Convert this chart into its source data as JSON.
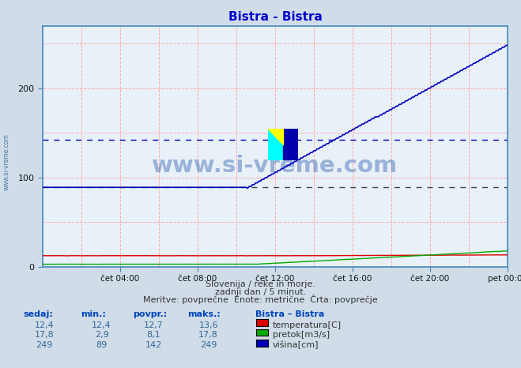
{
  "title": "Bistra - Bistra",
  "title_color": "#0000cc",
  "bg_color": "#d0dde8",
  "plot_bg_color": "#e8f0f8",
  "grid_h_color": "#ffaaaa",
  "grid_v_color": "#ffaaaa",
  "x_tick_pos": [
    4,
    8,
    12,
    16,
    20,
    24
  ],
  "x_tick_labels": [
    "čet 04:00",
    "čet 08:00",
    "čet 12:00",
    "čet 16:00",
    "čet 20:00",
    "pet 00:00"
  ],
  "ylim": [
    0,
    270
  ],
  "y_ticks": [
    0,
    100,
    200
  ],
  "avg_visina": 142,
  "avg_black": 89,
  "temp_color": "#dd0000",
  "pretok_color": "#00aa00",
  "visina_color": "#0000bb",
  "watermark": "www.si-vreme.com",
  "watermark_color": "#2255aa",
  "footer_line1": "Slovenija / reke in morje.",
  "footer_line2": "zadnji dan / 5 minut.",
  "footer_line3": "Meritve: povprečne  Enote: metrične  Črta: povprečje",
  "legend_title": "Bistra – Bistra",
  "table_headers": [
    "sedaj:",
    "min.:",
    "povpr.:",
    "maks.:"
  ],
  "table_rows": [
    [
      "12,4",
      "12,4",
      "12,7",
      "13,6",
      "temperatura[C]",
      "#dd0000"
    ],
    [
      "17,8",
      "2,9",
      "8,1",
      "17,8",
      "pretok[m3/s]",
      "#00aa00"
    ],
    [
      "249",
      "89",
      "142",
      "249",
      "višina[cm]",
      "#0000bb"
    ]
  ]
}
